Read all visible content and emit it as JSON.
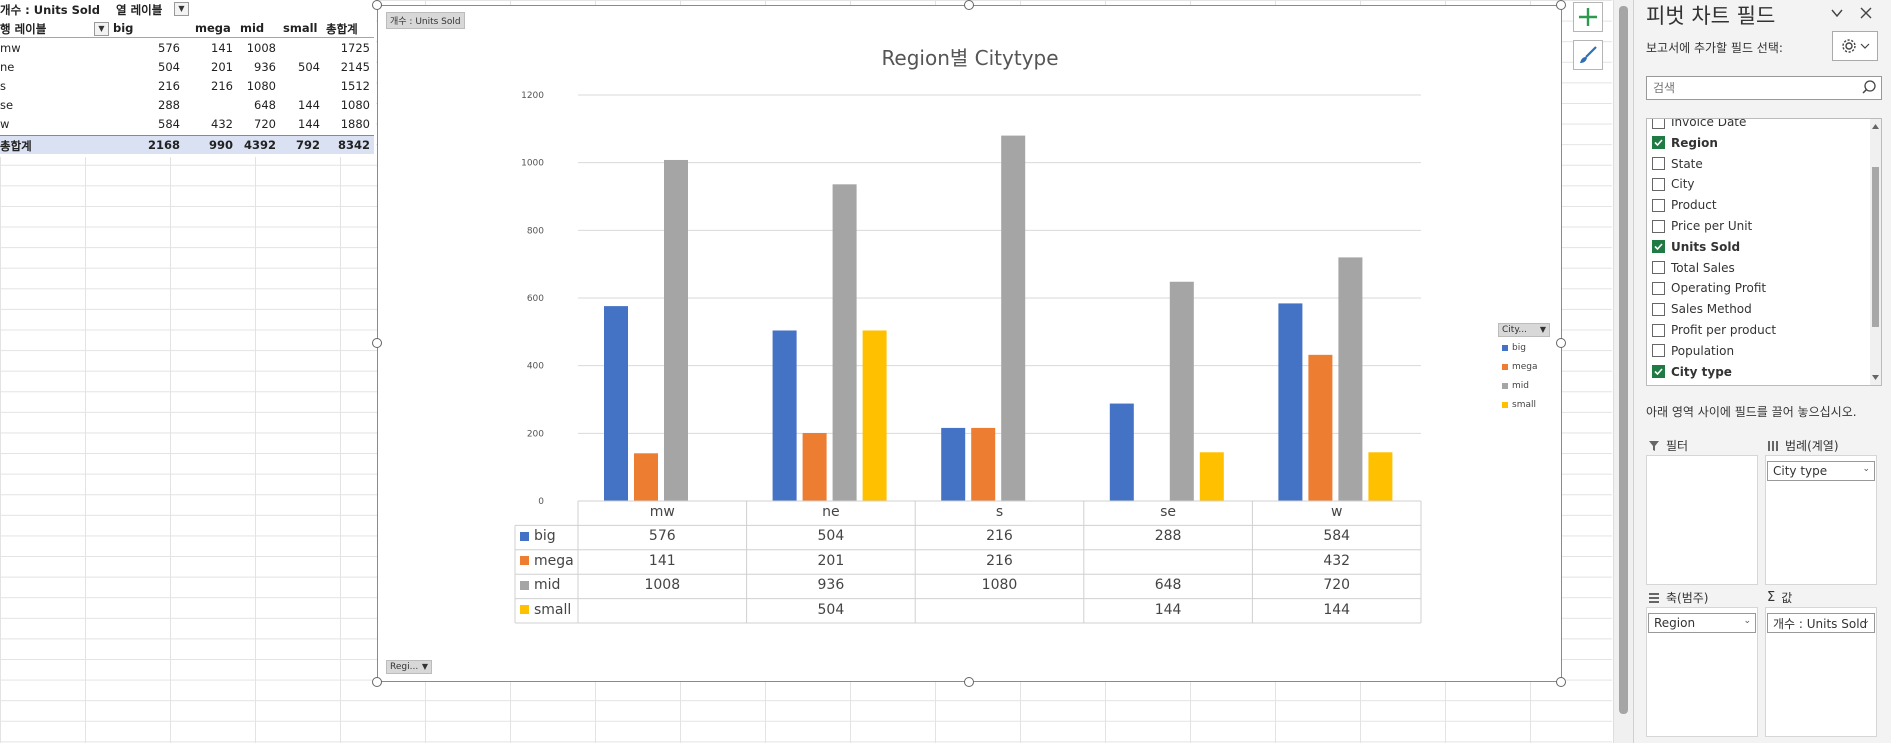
{
  "pivot": {
    "corner_label": "개수 : Units Sold",
    "col_label": "열 레이블",
    "row_label": "행 레이블",
    "col_headers": [
      "big",
      "mega",
      "mid",
      "small",
      "총합계"
    ],
    "rows": [
      {
        "label": "mw",
        "values": [
          "576",
          "141",
          "1008",
          "",
          "1725"
        ]
      },
      {
        "label": "ne",
        "values": [
          "504",
          "201",
          "936",
          "504",
          "2145"
        ]
      },
      {
        "label": "s",
        "values": [
          "216",
          "216",
          "1080",
          "",
          "1512"
        ]
      },
      {
        "label": "se",
        "values": [
          "288",
          "",
          "648",
          "144",
          "1080"
        ]
      },
      {
        "label": "w",
        "values": [
          "584",
          "432",
          "720",
          "144",
          "1880"
        ]
      }
    ],
    "total": {
      "label": "총합계",
      "values": [
        "2168",
        "990",
        "4392",
        "792",
        "8342"
      ]
    }
  },
  "chart": {
    "value_field_button": "개수 : Units Sold",
    "legend_field_button": "City...",
    "axis_field_button": "Regi...",
    "colors": {
      "big": "#4472c4",
      "mega": "#ed7d31",
      "mid": "#a5a5a5",
      "small": "#ffc000"
    }
  },
  "chart_data": {
    "type": "bar",
    "title": "Region별 Citytype",
    "categories": [
      "mw",
      "ne",
      "s",
      "se",
      "w"
    ],
    "series": [
      {
        "name": "big",
        "values": [
          576,
          504,
          216,
          288,
          584
        ]
      },
      {
        "name": "mega",
        "values": [
          141,
          201,
          216,
          null,
          432
        ]
      },
      {
        "name": "mid",
        "values": [
          1008,
          936,
          1080,
          648,
          720
        ]
      },
      {
        "name": "small",
        "values": [
          null,
          504,
          null,
          144,
          144
        ]
      }
    ],
    "ylim": [
      0,
      1200
    ],
    "yticks": [
      0,
      200,
      400,
      600,
      800,
      1000,
      1200
    ],
    "grid": true,
    "legend": "right",
    "data_table": true
  },
  "pane": {
    "title": "피벗 차트 필드",
    "subtitle": "보고서에 추가할 필드 선택:",
    "search_placeholder": "검색",
    "fields": [
      {
        "label": "Invoice Date",
        "checked": false
      },
      {
        "label": "Region",
        "checked": true
      },
      {
        "label": "State",
        "checked": false
      },
      {
        "label": "City",
        "checked": false
      },
      {
        "label": "Product",
        "checked": false
      },
      {
        "label": "Price per Unit",
        "checked": false
      },
      {
        "label": "Units Sold",
        "checked": true
      },
      {
        "label": "Total Sales",
        "checked": false
      },
      {
        "label": "Operating Profit",
        "checked": false
      },
      {
        "label": "Sales Method",
        "checked": false
      },
      {
        "label": "Profit per product",
        "checked": false
      },
      {
        "label": "Population",
        "checked": false
      },
      {
        "label": "City type",
        "checked": true
      }
    ],
    "drag_hint": "아래 영역 사이에 필드를 끌어 놓으십시오.",
    "areas": {
      "filter": {
        "title": "필터"
      },
      "legend": {
        "title": "범례(계열)",
        "chip": "City type"
      },
      "axis": {
        "title": "축(범주)",
        "chip": "Region"
      },
      "values": {
        "title": "값",
        "chip": "개수 : Units Sold"
      }
    }
  }
}
